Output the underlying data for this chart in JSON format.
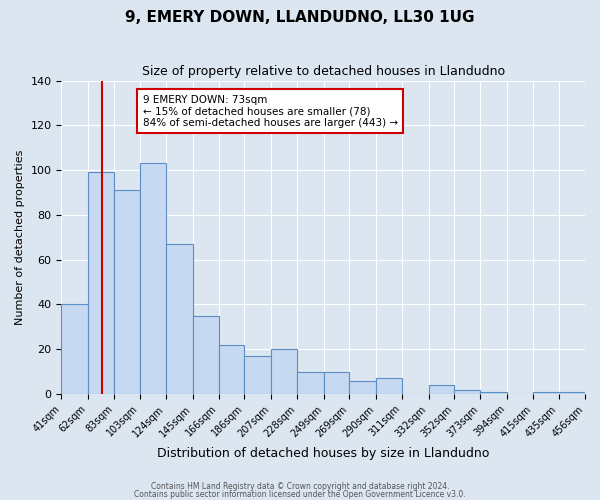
{
  "title": "9, EMERY DOWN, LLANDUDNO, LL30 1UG",
  "subtitle": "Size of property relative to detached houses in Llandudno",
  "xlabel": "Distribution of detached houses by size in Llandudno",
  "ylabel": "Number of detached properties",
  "bar_values": [
    40,
    99,
    91,
    103,
    67,
    35,
    22,
    17,
    20,
    10,
    10,
    6,
    7,
    0,
    4,
    2,
    1,
    0,
    1
  ],
  "bar_edges": [
    41,
    62,
    83,
    103,
    124,
    145,
    166,
    186,
    207,
    228,
    249,
    269,
    290,
    311,
    332,
    352,
    373,
    394,
    415,
    456
  ],
  "x_tick_positions": [
    41,
    62,
    83,
    103,
    124,
    145,
    166,
    186,
    207,
    228,
    249,
    269,
    290,
    311,
    332,
    352,
    373,
    394,
    415,
    435,
    456
  ],
  "x_labels": [
    "41sqm",
    "62sqm",
    "83sqm",
    "103sqm",
    "124sqm",
    "145sqm",
    "166sqm",
    "186sqm",
    "207sqm",
    "228sqm",
    "249sqm",
    "269sqm",
    "290sqm",
    "311sqm",
    "332sqm",
    "352sqm",
    "373sqm",
    "394sqm",
    "415sqm",
    "435sqm",
    "456sqm"
  ],
  "bar_color": "#c6d9f0",
  "bar_edge_color": "#5b8ec4",
  "background_color": "#dce6f1",
  "plot_bg_color": "#dce6f1",
  "grid_color": "#ffffff",
  "vline_x": 73,
  "vline_color": "#cc0000",
  "annotation_title": "9 EMERY DOWN: 73sqm",
  "annotation_line1": "← 15% of detached houses are smaller (78)",
  "annotation_line2": "84% of semi-detached houses are larger (443) →",
  "annotation_box_facecolor": "#ffffff",
  "annotation_border_color": "#cc0000",
  "ylim": [
    0,
    140
  ],
  "yticks": [
    0,
    20,
    40,
    60,
    80,
    100,
    120,
    140
  ],
  "footer1": "Contains HM Land Registry data © Crown copyright and database right 2024.",
  "footer2": "Contains public sector information licensed under the Open Government Licence v3.0."
}
